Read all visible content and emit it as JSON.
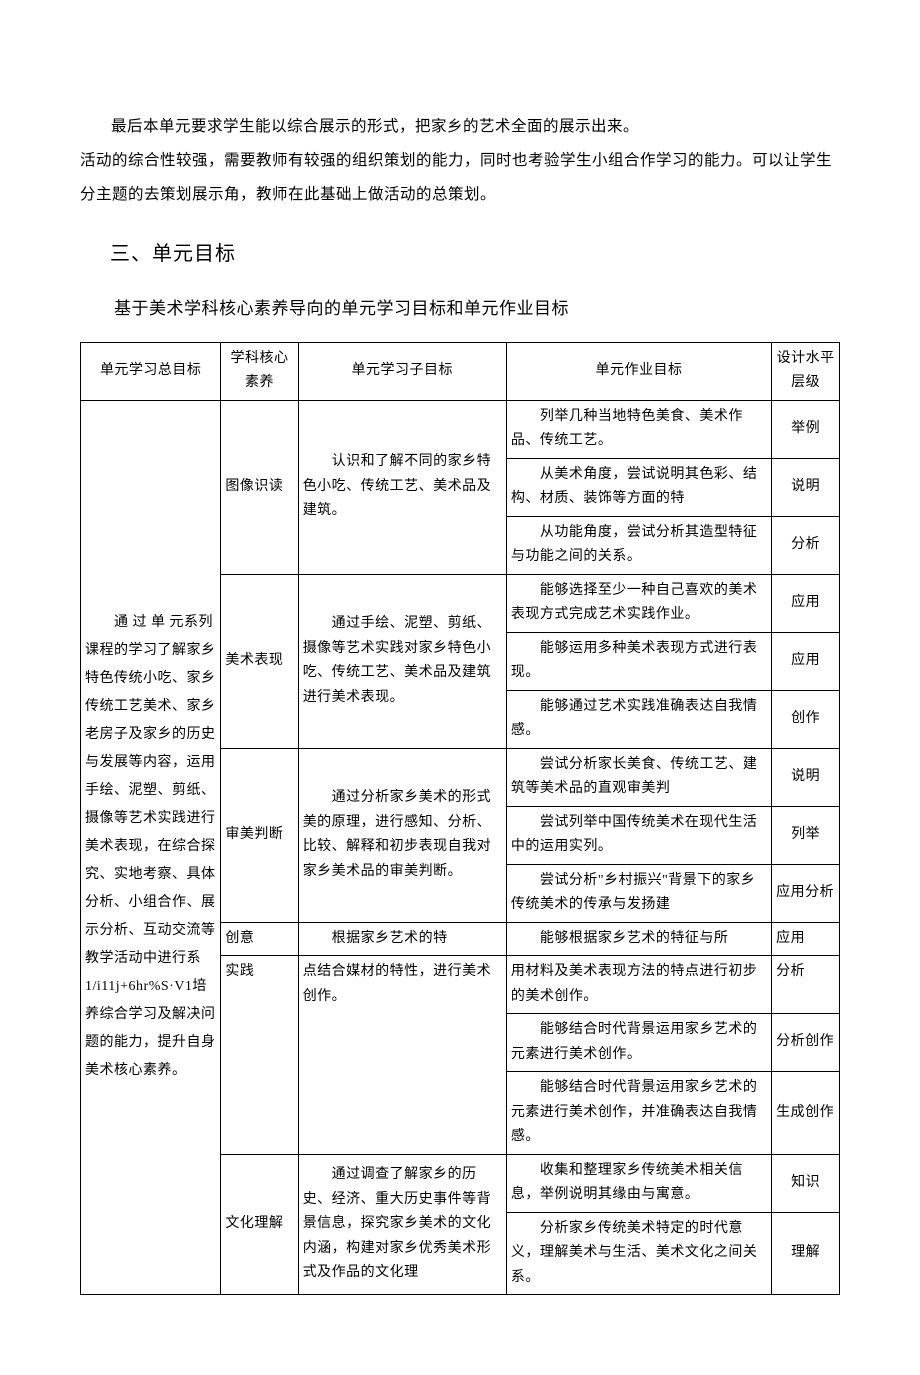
{
  "para1": "最后本单元要求学生能以综合展示的形式，把家乡的艺术全面的展示出来。",
  "para2": "活动的综合性较强，需要教师有较强的组织策划的能力，同时也考验学生小组合作学习的能力。可以让学生分主题的去策划展示角，教师在此基础上做活动的总策划。",
  "heading_3": "三、单元目标",
  "subheading": "基于美术学科核心素养导向的单元学习目标和单元作业目标",
  "headers": {
    "c0": "单元学习总目标",
    "c1": "学科核心素养",
    "c2": "单元学习子目标",
    "c3": "单元作业目标",
    "c4": "设计水平层级"
  },
  "main_goal": "　　通 过 单 元系列课程的学习了解家乡特色传统小吃、家乡传统工艺美术、家乡老房子及家乡的历史与发展等内容，运用手绘、泥塑、剪纸、摄像等艺术实践进行美术表现，在综合探究、实地考察、具体分析、小组合作、展示分析、互动交流等教学活动中进行系 1/i11j+6hr%S·V1培养综合学习及解决问题的能力，提升自身美术核心素养。",
  "competencies": {
    "image_reading": "图像识读",
    "art_expression": "美术表现",
    "aesthetic_judgment": "审美判断",
    "creative_practice_1": "创意",
    "creative_practice_2": "实践",
    "cultural_understanding": "文化理解"
  },
  "sub_goals": {
    "sg1": "　　认识和了解不同的家乡特色小吃、传统工艺、美术品及建筑。",
    "sg2": "　　通过手绘、泥塑、剪纸、摄像等艺术实践对家乡特色小吃、传统工艺、美术品及建筑进行美术表现。",
    "sg3": "　　通过分析家乡美术的形式美的原理，进行感知、分析、比较、解释和初步表现自我对家乡美术品的审美判断。",
    "sg4": "　　根据家乡艺术的特",
    "sg4b": "点结合媒材的特性，进行美术创作。",
    "sg5": "　　通过调查了解家乡的历史、经济、重大历史事件等背景信息，探究家乡美术的文化内涵，构建对家乡优秀美术形式及作品的文化理"
  },
  "hw_goals": {
    "h1": "　　列举几种当地特色美食、美术作品、传统工艺。",
    "h2": "　　从美术角度，尝试说明其色彩、结构、材质、装饰等方面的特",
    "h3": "　　从功能角度，尝试分析其造型特征与功能之间的关系。",
    "h4": "　　能够选择至少一种自己喜欢的美术表现方式完成艺术实践作业。",
    "h5": "　　能够运用多种美术表现方式进行表现。",
    "h6": "　　能够通过艺术实践准确表达自我情感。",
    "h7": "　　尝试分析家长美食、传统工艺、建筑等美术品的直观审美判",
    "h8": "　　尝试列举中国传统美术在现代生活中的运用实列。",
    "h9": "　　尝试分析\"乡村振兴\"背景下的家乡传统美术的传承与发扬建",
    "h10": "　　能够根据家乡艺术的特征与所",
    "h11": "用材料及美术表现方法的特点进行初步的美术创作。",
    "h12": "　　能够结合时代背景运用家乡艺术的元素进行美术创作。",
    "h13": "　　能够结合时代背景运用家乡艺术的元素进行美术创作，并准确表达自我情感。",
    "h14": "　　收集和整理家乡传统美术相关信息，举例说明其缘由与寓意。",
    "h15": "　　分析家乡传统美术特定的时代意义，理解美术与生活、美术文化之间关系。"
  },
  "levels": {
    "l1": "举例",
    "l2": "说明",
    "l3": "分析",
    "l4": "应用",
    "l5": "应用",
    "l6": "创作",
    "l7": "说明",
    "l8": "列举",
    "l9": "应用分析",
    "l10": "应用",
    "l11": "分析",
    "l12": "分析创作",
    "l13": "生成创作",
    "l14": "知识",
    "l15": "理解"
  }
}
